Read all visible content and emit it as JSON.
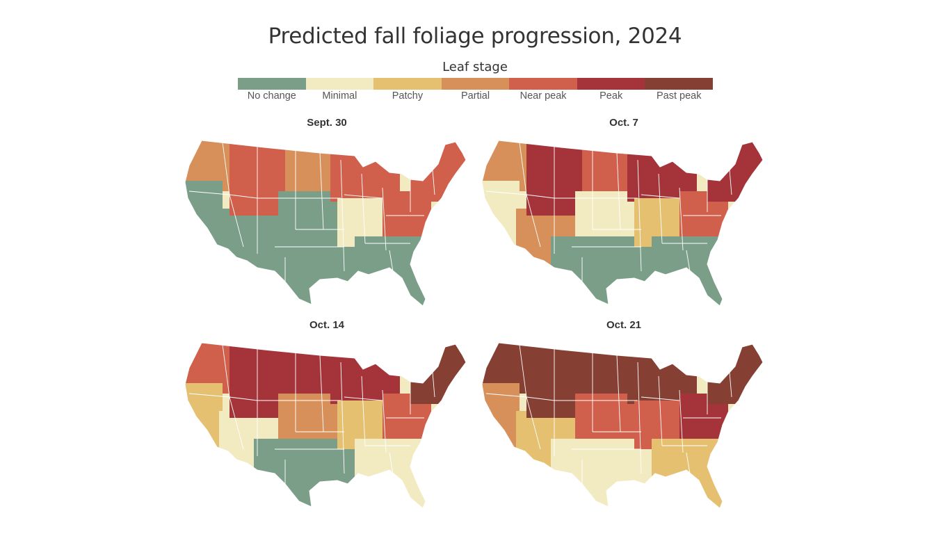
{
  "title": "Predicted fall foliage progression, 2024",
  "legend": {
    "title": "Leaf stage",
    "items": [
      {
        "label": "No change",
        "color": "#7b9e89"
      },
      {
        "label": "Minimal",
        "color": "#f2ebc2"
      },
      {
        "label": "Patchy",
        "color": "#e4c070"
      },
      {
        "label": "Partial",
        "color": "#d8905b"
      },
      {
        "label": "Near peak",
        "color": "#d0604b"
      },
      {
        "label": "Peak",
        "color": "#a5343a"
      },
      {
        "label": "Past peak",
        "color": "#853f33"
      }
    ]
  },
  "maps": [
    {
      "date": "Sept. 30",
      "region_stages": {
        "pacific_nw": "Partial",
        "california": "No change",
        "southwest": "No change",
        "rockies": "Near peak",
        "north_plains": "Partial",
        "central_plains": "No change",
        "texas_south": "No change",
        "great_lakes": "Near peak",
        "midwest": "Minimal",
        "appalachia": "Near peak",
        "southeast": "No change",
        "new_england": "Near peak"
      }
    },
    {
      "date": "Oct. 7",
      "region_stages": {
        "pacific_nw": "Partial",
        "california": "Minimal",
        "southwest": "Partial",
        "rockies": "Peak",
        "north_plains": "Near peak",
        "central_plains": "Minimal",
        "texas_south": "No change",
        "great_lakes": "Peak",
        "midwest": "Patchy",
        "appalachia": "Near peak",
        "southeast": "No change",
        "new_england": "Peak"
      }
    },
    {
      "date": "Oct. 14",
      "region_stages": {
        "pacific_nw": "Near peak",
        "california": "Patchy",
        "southwest": "Minimal",
        "rockies": "Peak",
        "north_plains": "Peak",
        "central_plains": "Partial",
        "texas_south": "No change",
        "great_lakes": "Peak",
        "midwest": "Patchy",
        "appalachia": "Near peak",
        "southeast": "Minimal",
        "new_england": "Past peak"
      }
    },
    {
      "date": "Oct. 21",
      "region_stages": {
        "pacific_nw": "Past peak",
        "california": "Partial",
        "southwest": "Patchy",
        "rockies": "Past peak",
        "north_plains": "Past peak",
        "central_plains": "Near peak",
        "texas_south": "Minimal",
        "great_lakes": "Past peak",
        "midwest": "Near peak",
        "appalachia": "Peak",
        "southeast": "Patchy",
        "new_england": "Past peak"
      }
    }
  ]
}
